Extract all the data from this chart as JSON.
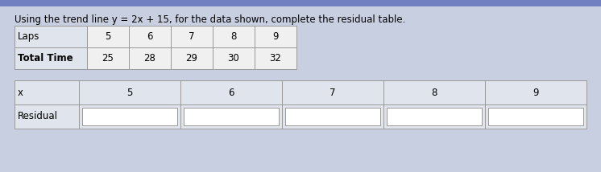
{
  "title": "Using the trend line y = 2x + 15, for the data shown, complete the residual table.",
  "top_table_rows": [
    "Laps",
    "Total Time"
  ],
  "top_table_vals": [
    [
      "5",
      "6",
      "7",
      "8",
      "9"
    ],
    [
      "25",
      "28",
      "29",
      "30",
      "32"
    ]
  ],
  "bottom_x_vals": [
    "5",
    "6",
    "7",
    "8",
    "9"
  ],
  "bg_top_bar": "#6070b0",
  "bg_color": "#c8cfe0",
  "cell_white": "#f0f0f0",
  "cell_light": "#e0e4ec",
  "border_color": "#999999",
  "title_fontsize": 8.5,
  "cell_fontsize": 8.5,
  "top_stripe_color": "#7080c0"
}
